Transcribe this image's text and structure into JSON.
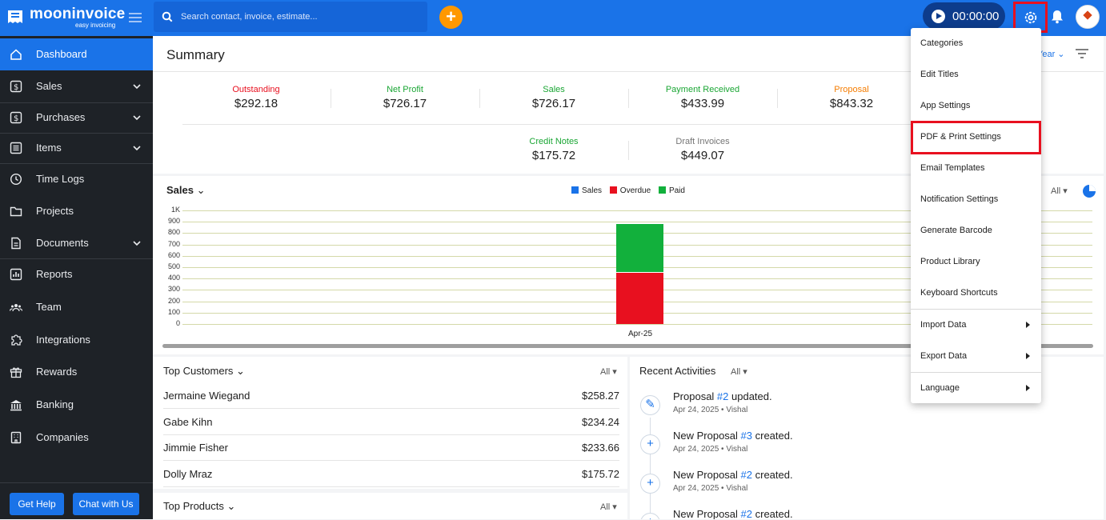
{
  "topbar": {
    "brand": "mooninvoice",
    "tagline": "easy invoicing",
    "search_placeholder": "Search contact, invoice, estimate...",
    "timer": "00:00:00"
  },
  "sidebar": {
    "items": [
      {
        "label": "Dashboard",
        "icon": "home-icon"
      },
      {
        "label": "Sales",
        "icon": "dollar-icon"
      },
      {
        "label": "Purchases",
        "icon": "purchase-icon"
      },
      {
        "label": "Items",
        "icon": "list-icon"
      },
      {
        "label": "Time Logs",
        "icon": "clock-icon"
      },
      {
        "label": "Projects",
        "icon": "folder-icon"
      },
      {
        "label": "Documents",
        "icon": "document-icon"
      },
      {
        "label": "Reports",
        "icon": "chart-icon"
      },
      {
        "label": "Team",
        "icon": "team-icon"
      },
      {
        "label": "Integrations",
        "icon": "puzzle-icon"
      },
      {
        "label": "Rewards",
        "icon": "gift-icon"
      },
      {
        "label": "Banking",
        "icon": "bank-icon"
      },
      {
        "label": "Companies",
        "icon": "building-icon"
      }
    ],
    "help_label": "Get Help",
    "chat_label": "Chat with Us"
  },
  "summary": {
    "title": "Summary",
    "period": "Year",
    "stats": [
      {
        "label": "Outstanding",
        "value": "$292.18",
        "color": "#e8101f"
      },
      {
        "label": "Net Profit",
        "value": "$726.17",
        "color": "#1aa634"
      },
      {
        "label": "Sales",
        "value": "$726.17",
        "color": "#1aa634"
      },
      {
        "label": "Payment Received",
        "value": "$433.99",
        "color": "#1aa634"
      },
      {
        "label": "Proposal",
        "value": "$843.32",
        "color": "#f57c00"
      },
      {
        "label": "Credit Notes",
        "value": "$175.72",
        "color": "#1aa634"
      },
      {
        "label": "Draft Invoices",
        "value": "$449.07",
        "color": "#757575"
      }
    ]
  },
  "sales_chart": {
    "title": "Sales",
    "filter": "All",
    "legend": [
      {
        "label": "Sales",
        "color": "#1a73e8"
      },
      {
        "label": "Overdue",
        "color": "#e8101f"
      },
      {
        "label": "Paid",
        "color": "#12b03c"
      }
    ],
    "yticks": [
      "1K",
      "900",
      "800",
      "700",
      "600",
      "500",
      "400",
      "300",
      "200",
      "100",
      "0"
    ],
    "xlabel": "Apr-25"
  },
  "chart_data": {
    "type": "bar",
    "categories": [
      "Apr-25"
    ],
    "series": [
      {
        "name": "Sales",
        "values": [
          0
        ]
      },
      {
        "name": "Overdue",
        "values": [
          460
        ]
      },
      {
        "name": "Paid",
        "values": [
          430
        ]
      }
    ],
    "stacked": true,
    "ylim": [
      0,
      1000
    ],
    "legend": "top-center",
    "grid": true
  },
  "top_customers": {
    "title": "Top Customers",
    "filter": "All",
    "rows": [
      {
        "name": "Jermaine Wiegand",
        "amount": "$258.27"
      },
      {
        "name": "Gabe Kihn",
        "amount": "$234.24"
      },
      {
        "name": "Jimmie Fisher",
        "amount": "$233.66"
      },
      {
        "name": "Dolly Mraz",
        "amount": "$175.72"
      }
    ]
  },
  "top_products": {
    "title": "Top Products",
    "filter": "All"
  },
  "recent_activities": {
    "title": "Recent Activities",
    "filter": "All",
    "items": [
      {
        "pre": "Proposal ",
        "link": "#2",
        "post": " updated.",
        "meta": "Apr 24, 2025 • Vishal",
        "icon": "pencil-icon"
      },
      {
        "pre": "New Proposal ",
        "link": "#3",
        "post": " created.",
        "meta": "Apr 24, 2025 • Vishal",
        "icon": "plus-icon"
      },
      {
        "pre": "New Proposal ",
        "link": "#2",
        "post": " created.",
        "meta": "Apr 24, 2025 • Vishal",
        "icon": "plus-icon"
      },
      {
        "pre": "New Proposal ",
        "link": "#2",
        "post": " created.",
        "meta": "",
        "icon": "plus-icon"
      }
    ]
  },
  "settings_menu": {
    "items": [
      {
        "label": "Categories"
      },
      {
        "label": "Edit Titles"
      },
      {
        "label": "App Settings"
      },
      {
        "label": "PDF & Print Settings"
      },
      {
        "label": "Email Templates"
      },
      {
        "label": "Notification Settings"
      },
      {
        "label": "Generate Barcode"
      },
      {
        "label": "Product Library"
      },
      {
        "label": "Keyboard Shortcuts"
      },
      {
        "label": "Import Data"
      },
      {
        "label": "Export Data"
      },
      {
        "label": "Language"
      }
    ]
  }
}
